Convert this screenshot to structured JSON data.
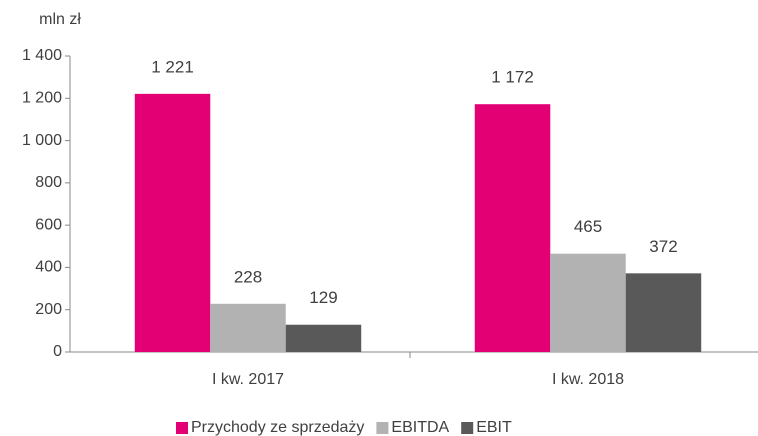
{
  "chart_data": {
    "type": "bar",
    "y_label": "mln zł",
    "categories": [
      "I kw. 2017",
      "I kw. 2018"
    ],
    "series": [
      {
        "name": "Przychody ze sprzedaży",
        "color": "#e20074",
        "values": [
          1221,
          1172
        ],
        "value_labels": [
          "1 221",
          "1 172"
        ]
      },
      {
        "name": "EBITDA",
        "color": "#b2b2b2",
        "values": [
          228,
          465
        ]
      },
      {
        "name": "EBIT",
        "color": "#595959",
        "values": [
          129,
          372
        ]
      }
    ],
    "ylim": [
      0,
      1400
    ],
    "yticks": [
      0,
      200,
      400,
      600,
      800,
      {
        "value": 1000,
        "label": "1 000"
      },
      {
        "value": 1200,
        "label": "1 200"
      },
      {
        "value": 1400,
        "label": "1 400"
      }
    ],
    "legend": "bottom"
  }
}
